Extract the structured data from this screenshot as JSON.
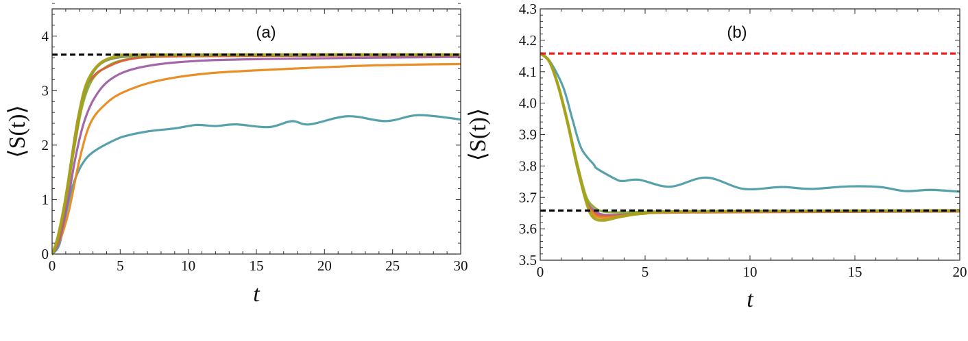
{
  "figure": {
    "panels": [
      "(a)",
      "(b)"
    ]
  },
  "chart_data": [
    {
      "type": "line",
      "panel_label": "(a)",
      "title": "",
      "xlabel": "t",
      "ylabel": "⟨S(t)⟩",
      "xlim": [
        0,
        30
      ],
      "ylim": [
        0,
        4.5
      ],
      "xticks": [
        0,
        5,
        10,
        15,
        20,
        25,
        30
      ],
      "xtick_labels": [
        "0",
        "5",
        "10",
        "15",
        "20",
        "25",
        "30"
      ],
      "yticks": [
        0,
        1,
        2,
        3,
        4
      ],
      "ytick_labels": [
        "0",
        "1",
        "2",
        "3",
        "4"
      ],
      "x_minor_step": 1,
      "y_minor_step": 0.2,
      "grid": false,
      "legend": null,
      "reference_lines": [
        {
          "y": 3.66,
          "color": "#000000",
          "style": "dashed"
        }
      ],
      "series": [
        {
          "name": "curve-teal",
          "color": "#4e9ca6",
          "x": [
            0,
            0.54,
            1.04,
            1.54,
            2.21,
            3.05,
            4.73,
            5.6,
            7.0,
            9.1,
            10.6,
            12.0,
            13.5,
            15.9,
            17.6,
            18.9,
            21.7,
            24.5,
            26.9,
            30
          ],
          "y": [
            0,
            0.18,
            0.77,
            1.27,
            1.65,
            1.88,
            2.11,
            2.18,
            2.25,
            2.31,
            2.37,
            2.35,
            2.38,
            2.33,
            2.44,
            2.38,
            2.53,
            2.44,
            2.55,
            2.47
          ]
        },
        {
          "name": "curve-orange",
          "color": "#e8891c",
          "x": [
            0,
            0.5,
            1.21,
            2.05,
            2.81,
            3.87,
            5.23,
            7.74,
            11.6,
            17.4,
            23.2,
            30
          ],
          "y": [
            0,
            0.2,
            0.77,
            1.77,
            2.4,
            2.74,
            2.97,
            3.18,
            3.32,
            3.4,
            3.46,
            3.49
          ]
        },
        {
          "name": "curve-purple",
          "color": "#9e5fa3",
          "x": [
            0,
            0.5,
            1.1,
            1.7,
            2.32,
            3.1,
            4.26,
            6.19,
            9.68,
            15.5,
            30
          ],
          "y": [
            0,
            0.22,
            0.9,
            1.75,
            2.4,
            2.86,
            3.2,
            3.41,
            3.53,
            3.58,
            3.62
          ]
        },
        {
          "name": "curve-green",
          "color": "#8aac2a",
          "x": [
            0,
            0.45,
            1.0,
            1.6,
            2.2,
            2.9,
            3.87,
            5.2,
            7.5,
            12,
            30
          ],
          "y": [
            0,
            0.24,
            0.95,
            1.9,
            2.7,
            3.18,
            3.42,
            3.56,
            3.62,
            3.64,
            3.65
          ]
        },
        {
          "name": "curve-red",
          "color": "#dd5f3a",
          "x": [
            0,
            0.45,
            1.0,
            1.6,
            2.32,
            3.0,
            3.87,
            5.81,
            9.68,
            30
          ],
          "y": [
            0,
            0.25,
            0.97,
            1.95,
            2.95,
            3.25,
            3.41,
            3.58,
            3.63,
            3.65
          ]
        },
        {
          "name": "curve-gray",
          "color": "#7f8f6a",
          "x": [
            0,
            0.4,
            0.9,
            1.4,
            1.9,
            2.5,
            3.2,
            4.2,
            6,
            10,
            30
          ],
          "y": [
            0,
            0.25,
            0.88,
            1.72,
            2.5,
            3.05,
            3.4,
            3.57,
            3.63,
            3.65,
            3.66
          ]
        },
        {
          "name": "curve-olive",
          "color": "#a6a21a",
          "x": [
            0,
            0.37,
            0.87,
            1.37,
            1.88,
            2.52,
            3.48,
            4.84,
            7,
            30
          ],
          "y": [
            0,
            0.26,
            0.85,
            1.61,
            2.44,
            3.12,
            3.49,
            3.63,
            3.655,
            3.66
          ]
        }
      ]
    },
    {
      "type": "line",
      "panel_label": "(b)",
      "title": "",
      "xlabel": "t",
      "ylabel": "⟨S(t)⟩",
      "xlim": [
        0,
        20
      ],
      "ylim": [
        3.5,
        4.3
      ],
      "xticks": [
        0,
        5,
        10,
        15,
        20
      ],
      "xtick_labels": [
        "0",
        "5",
        "10",
        "15",
        "20"
      ],
      "yticks": [
        3.5,
        3.6,
        3.7,
        3.8,
        3.9,
        4.0,
        4.1,
        4.2,
        4.3
      ],
      "ytick_labels": [
        "3.5",
        "3.6",
        "3.7",
        "3.8",
        "3.9",
        "4.0",
        "4.1",
        "4.2",
        "4.3"
      ],
      "x_minor_step": 1,
      "y_minor_step": 0.02,
      "grid": false,
      "legend": null,
      "reference_lines": [
        {
          "y": 4.158,
          "color": "#ee1c1c",
          "style": "dashed"
        },
        {
          "y": 3.658,
          "color": "#000000",
          "style": "dashed"
        }
      ],
      "series": [
        {
          "name": "curve-teal",
          "color": "#4e9ca6",
          "x": [
            0,
            0.44,
            1.09,
            1.53,
            1.96,
            2.55,
            2.72,
            3.6,
            3.95,
            4.72,
            6.19,
            7.92,
            9.7,
            11.5,
            12.9,
            14.7,
            16.2,
            17.4,
            18.6,
            20
          ],
          "y": [
            4.158,
            4.135,
            4.052,
            3.95,
            3.856,
            3.805,
            3.791,
            3.758,
            3.752,
            3.756,
            3.734,
            3.763,
            3.727,
            3.733,
            3.727,
            3.735,
            3.733,
            3.72,
            3.724,
            3.718
          ]
        },
        {
          "name": "curve-purple",
          "color": "#9e5fa3",
          "x": [
            0,
            0.44,
            0.87,
            1.31,
            1.74,
            2.18,
            2.55,
            3.0,
            3.8,
            4.9,
            7,
            20
          ],
          "y": [
            4.158,
            4.132,
            4.05,
            3.935,
            3.805,
            3.695,
            3.66,
            3.645,
            3.645,
            3.65,
            3.655,
            3.657
          ]
        },
        {
          "name": "curve-red",
          "color": "#dd5f3a",
          "x": [
            0,
            0.44,
            0.87,
            1.31,
            1.74,
            2.18,
            2.55,
            3.0,
            3.8,
            4.9,
            7,
            20
          ],
          "y": [
            4.158,
            4.132,
            4.051,
            3.935,
            3.805,
            3.692,
            3.652,
            3.64,
            3.642,
            3.648,
            3.652,
            3.655
          ]
        },
        {
          "name": "curve-orange",
          "color": "#e8891c",
          "x": [
            0,
            0.44,
            0.87,
            1.31,
            1.74,
            2.18,
            2.55,
            3.0,
            3.8,
            4.9,
            7,
            20
          ],
          "y": [
            4.158,
            4.132,
            4.051,
            3.935,
            3.805,
            3.69,
            3.645,
            3.635,
            3.64,
            3.648,
            3.654,
            3.658
          ]
        },
        {
          "name": "curve-green",
          "color": "#8aac2a",
          "x": [
            0,
            0.44,
            0.87,
            1.31,
            1.74,
            2.18,
            2.55,
            3.0,
            3.8,
            4.9,
            7,
            20
          ],
          "y": [
            4.158,
            4.133,
            4.055,
            3.942,
            3.815,
            3.705,
            3.67,
            3.655,
            3.652,
            3.654,
            3.656,
            3.658
          ]
        },
        {
          "name": "curve-olive",
          "color": "#a6a21a",
          "x": [
            0,
            0.44,
            0.87,
            1.31,
            1.74,
            2.18,
            2.5,
            3.0,
            3.8,
            4.9,
            7,
            20
          ],
          "y": [
            4.158,
            4.132,
            4.052,
            3.936,
            3.805,
            3.689,
            3.638,
            3.627,
            3.638,
            3.649,
            3.655,
            3.658
          ]
        }
      ]
    }
  ]
}
